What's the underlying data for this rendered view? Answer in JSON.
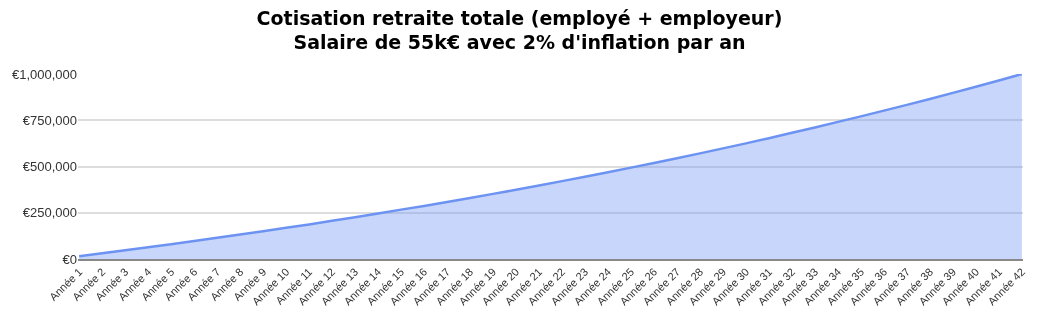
{
  "chart_data": {
    "type": "area",
    "title": "Cotisation retraite totale (employé + employeur)\nSalaire de 55k€ avec 2% d'inflation par an",
    "categories": [
      "Année 1",
      "Année 2",
      "Année 3",
      "Année 4",
      "Année 5",
      "Année 6",
      "Année 7",
      "Année 8",
      "Année 9",
      "Année 10",
      "Année 11",
      "Année 12",
      "Année 13",
      "Année 14",
      "Année 15",
      "Année 16",
      "Année 17",
      "Année 18",
      "Année 19",
      "Année 20",
      "Année 21",
      "Année 22",
      "Année 23",
      "Année 24",
      "Année 25",
      "Année 26",
      "Année 27",
      "Année 28",
      "Année 29",
      "Année 30",
      "Année 31",
      "Année 32",
      "Année 33",
      "Année 34",
      "Année 35",
      "Année 36",
      "Année 37",
      "Année 38",
      "Année 39",
      "Année 40",
      "Année 41",
      "Année 42"
    ],
    "series": [
      {
        "color": "#6d93f2",
        "values": [
          15000,
          31000,
          47000,
          64000,
          80000,
          97000,
          115000,
          132000,
          150000,
          169000,
          187000,
          207000,
          226000,
          246000,
          267000,
          287000,
          308000,
          330000,
          352000,
          374000,
          397000,
          421000,
          445000,
          469000,
          494000,
          519000,
          545000,
          571000,
          598000,
          625000,
          653000,
          682000,
          711000,
          741000,
          771000,
          802000,
          833000,
          865000,
          898000,
          931000,
          965000,
          1000000
        ]
      }
    ],
    "ylim": [
      0,
      1000000
    ],
    "yticks": [
      {
        "value": 0,
        "label": "€0"
      },
      {
        "value": 250000,
        "label": "€250,000"
      },
      {
        "value": 500000,
        "label": "€500,000"
      },
      {
        "value": 750000,
        "label": "€750,000"
      },
      {
        "value": 1000000,
        "label": "€1,000,000"
      }
    ],
    "grid": "y"
  }
}
